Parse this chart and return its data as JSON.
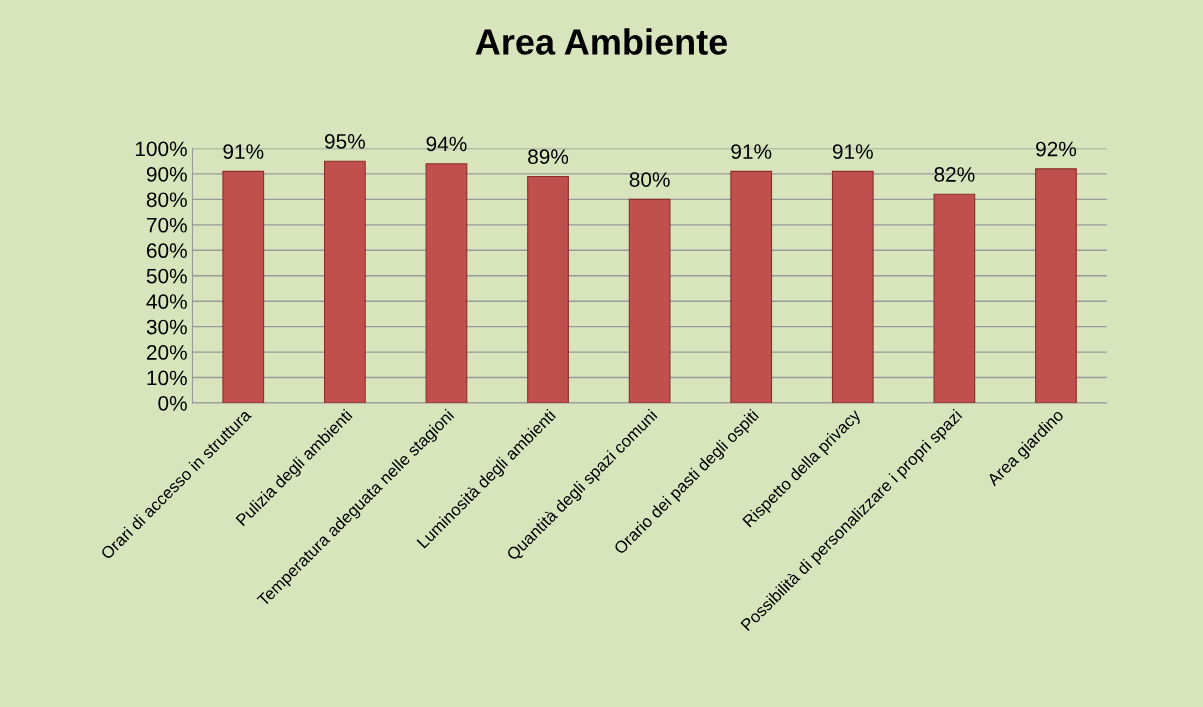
{
  "chart_data": {
    "type": "bar",
    "title": "Area Ambiente",
    "categories": [
      "Orari di accesso in struttura",
      "Pulizia degli ambienti",
      "Temperatura adeguata nelle stagioni",
      "Luminosità degli ambienti",
      "Quantità degli spazi comuni",
      "Orario dei pasti degli ospiti",
      "Rispetto della privacy",
      "Possibilità di personalizzare i propri spazi",
      "Area giardino"
    ],
    "values": [
      91,
      95,
      94,
      89,
      80,
      91,
      91,
      82,
      92
    ],
    "value_labels": [
      "91%",
      "95%",
      "94%",
      "89%",
      "80%",
      "91%",
      "91%",
      "82%",
      "92%"
    ],
    "color": "#c0504d",
    "ylim": [
      0,
      100
    ],
    "yticks": [
      {
        "value": 0,
        "label": "0%"
      },
      {
        "value": 10,
        "label": "10%"
      },
      {
        "value": 20,
        "label": "20%"
      },
      {
        "value": 30,
        "label": "30%"
      },
      {
        "value": 40,
        "label": "40%"
      },
      {
        "value": 50,
        "label": "50%"
      },
      {
        "value": 60,
        "label": "60%"
      },
      {
        "value": 70,
        "label": "70%"
      },
      {
        "value": 80,
        "label": "80%"
      },
      {
        "value": 90,
        "label": "90%"
      },
      {
        "value": 100,
        "label": "100%"
      }
    ],
    "grid": "y"
  }
}
